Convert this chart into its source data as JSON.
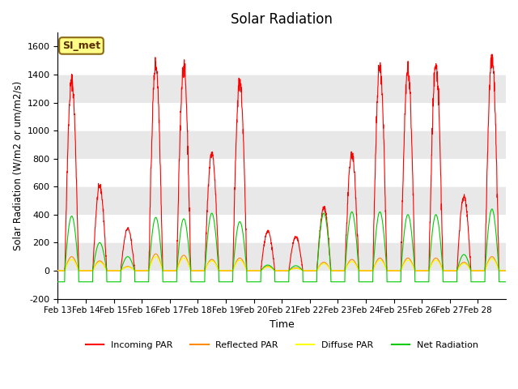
{
  "title": "Solar Radiation",
  "xlabel": "Time",
  "ylabel": "Solar Radiation (W/m2 or um/m2/s)",
  "ylim": [
    -200,
    1700
  ],
  "yticks": [
    -200,
    0,
    200,
    400,
    600,
    800,
    1000,
    1200,
    1400,
    1600
  ],
  "date_labels": [
    "Feb 13",
    "Feb 14",
    "Feb 15",
    "Feb 16",
    "Feb 17",
    "Feb 18",
    "Feb 19",
    "Feb 20",
    "Feb 21",
    "Feb 22",
    "Feb 23",
    "Feb 24",
    "Feb 25",
    "Feb 26",
    "Feb 27",
    "Feb 28"
  ],
  "station_label": "SI_met",
  "colors": {
    "incoming": "#FF0000",
    "reflected": "#FF8C00",
    "diffuse": "#FFFF00",
    "net": "#00CC00",
    "background_gray": "#E8E8E8",
    "background_white": "#FFFFFF",
    "station_bg": "#FFFF88",
    "station_border": "#8B6914"
  },
  "legend_labels": [
    "Incoming PAR",
    "Reflected PAR",
    "Diffuse PAR",
    "Net Radiation"
  ],
  "day_peaks_in": [
    1360,
    600,
    300,
    1475,
    1460,
    840,
    1350,
    280,
    240,
    450,
    830,
    1450,
    1440,
    1460,
    530,
    1520
  ],
  "day_peaks_ref": [
    100,
    70,
    30,
    120,
    110,
    80,
    90,
    30,
    20,
    60,
    80,
    90,
    90,
    90,
    60,
    100
  ],
  "day_peaks_dif": [
    80,
    60,
    25,
    100,
    90,
    70,
    75,
    25,
    15,
    50,
    65,
    75,
    75,
    75,
    50,
    85
  ],
  "day_peaks_net": [
    390,
    200,
    100,
    380,
    370,
    410,
    350,
    40,
    35,
    410,
    420,
    420,
    400,
    400,
    115,
    440
  ],
  "net_night_min": -80,
  "n_days": 16,
  "pts_per_day": 144
}
